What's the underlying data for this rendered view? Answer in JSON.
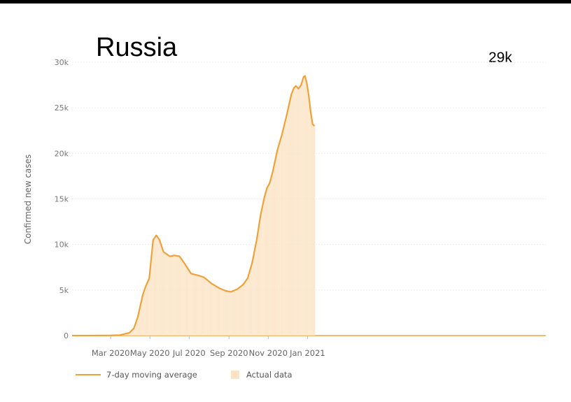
{
  "chart_data": {
    "type": "area",
    "title": "Russia",
    "ylabel": "Confirmed new cases",
    "xlabel": "",
    "annotation": "29k",
    "ylim": [
      0,
      30000
    ],
    "yticks": [
      {
        "value": 0,
        "label": "0"
      },
      {
        "value": 5000,
        "label": "5k"
      },
      {
        "value": 10000,
        "label": "10k"
      },
      {
        "value": 15000,
        "label": "15k"
      },
      {
        "value": 20000,
        "label": "20k"
      },
      {
        "value": 25000,
        "label": "25k"
      },
      {
        "value": 30000,
        "label": "30k"
      }
    ],
    "xrange": [
      "2020-01-01",
      "2021-01-05"
    ],
    "xticks": [
      {
        "date": "2020-03-01",
        "label": "Mar 2020"
      },
      {
        "date": "2020-05-01",
        "label": "May 2020"
      },
      {
        "date": "2020-07-01",
        "label": "Jul 2020"
      },
      {
        "date": "2020-09-01",
        "label": "Sep 2020"
      },
      {
        "date": "2020-11-01",
        "label": "Nov 2020"
      },
      {
        "date": "2021-01-01",
        "label": "Jan 2021"
      }
    ],
    "legend": {
      "position": "bottom-left",
      "line_label": "7-day moving average",
      "area_label": "Actual data"
    },
    "colors": {
      "line": "#f0a23a",
      "area": "#fbe3c4"
    },
    "series": [
      {
        "name": "7-day moving average",
        "points": [
          [
            "2020-01-01",
            0
          ],
          [
            "2020-02-01",
            5
          ],
          [
            "2020-03-01",
            20
          ],
          [
            "2020-03-15",
            50
          ],
          [
            "2020-03-30",
            300
          ],
          [
            "2020-04-06",
            800
          ],
          [
            "2020-04-12",
            2000
          ],
          [
            "2020-04-20",
            4500
          ],
          [
            "2020-04-25",
            5500
          ],
          [
            "2020-04-30",
            6300
          ],
          [
            "2020-05-06",
            10500
          ],
          [
            "2020-05-11",
            11000
          ],
          [
            "2020-05-16",
            10500
          ],
          [
            "2020-05-22",
            9200
          ],
          [
            "2020-06-01",
            8700
          ],
          [
            "2020-06-08",
            8800
          ],
          [
            "2020-06-16",
            8700
          ],
          [
            "2020-06-24",
            7900
          ],
          [
            "2020-07-04",
            6800
          ],
          [
            "2020-07-15",
            6600
          ],
          [
            "2020-07-24",
            6400
          ],
          [
            "2020-08-05",
            5700
          ],
          [
            "2020-08-17",
            5200
          ],
          [
            "2020-08-27",
            4900
          ],
          [
            "2020-09-04",
            4800
          ],
          [
            "2020-09-14",
            5100
          ],
          [
            "2020-09-23",
            5600
          ],
          [
            "2020-09-30",
            6300
          ],
          [
            "2020-10-07",
            8000
          ],
          [
            "2020-10-14",
            10500
          ],
          [
            "2020-10-20",
            13200
          ],
          [
            "2020-10-26",
            15200
          ],
          [
            "2020-10-30",
            16200
          ],
          [
            "2020-11-03",
            16700
          ],
          [
            "2020-11-08",
            18000
          ],
          [
            "2020-11-15",
            20300
          ],
          [
            "2020-11-22",
            22000
          ],
          [
            "2020-11-30",
            24300
          ],
          [
            "2020-12-07",
            26500
          ],
          [
            "2020-12-11",
            27200
          ],
          [
            "2020-12-14",
            27400
          ],
          [
            "2020-12-18",
            27100
          ],
          [
            "2020-12-22",
            27500
          ],
          [
            "2020-12-26",
            28400
          ],
          [
            "2020-12-28",
            28500
          ],
          [
            "2020-12-31",
            27700
          ],
          [
            "2021-01-03",
            26300
          ],
          [
            "2021-01-06",
            24500
          ],
          [
            "2021-01-09",
            23200
          ],
          [
            "2021-01-12",
            23000
          ]
        ]
      }
    ]
  }
}
